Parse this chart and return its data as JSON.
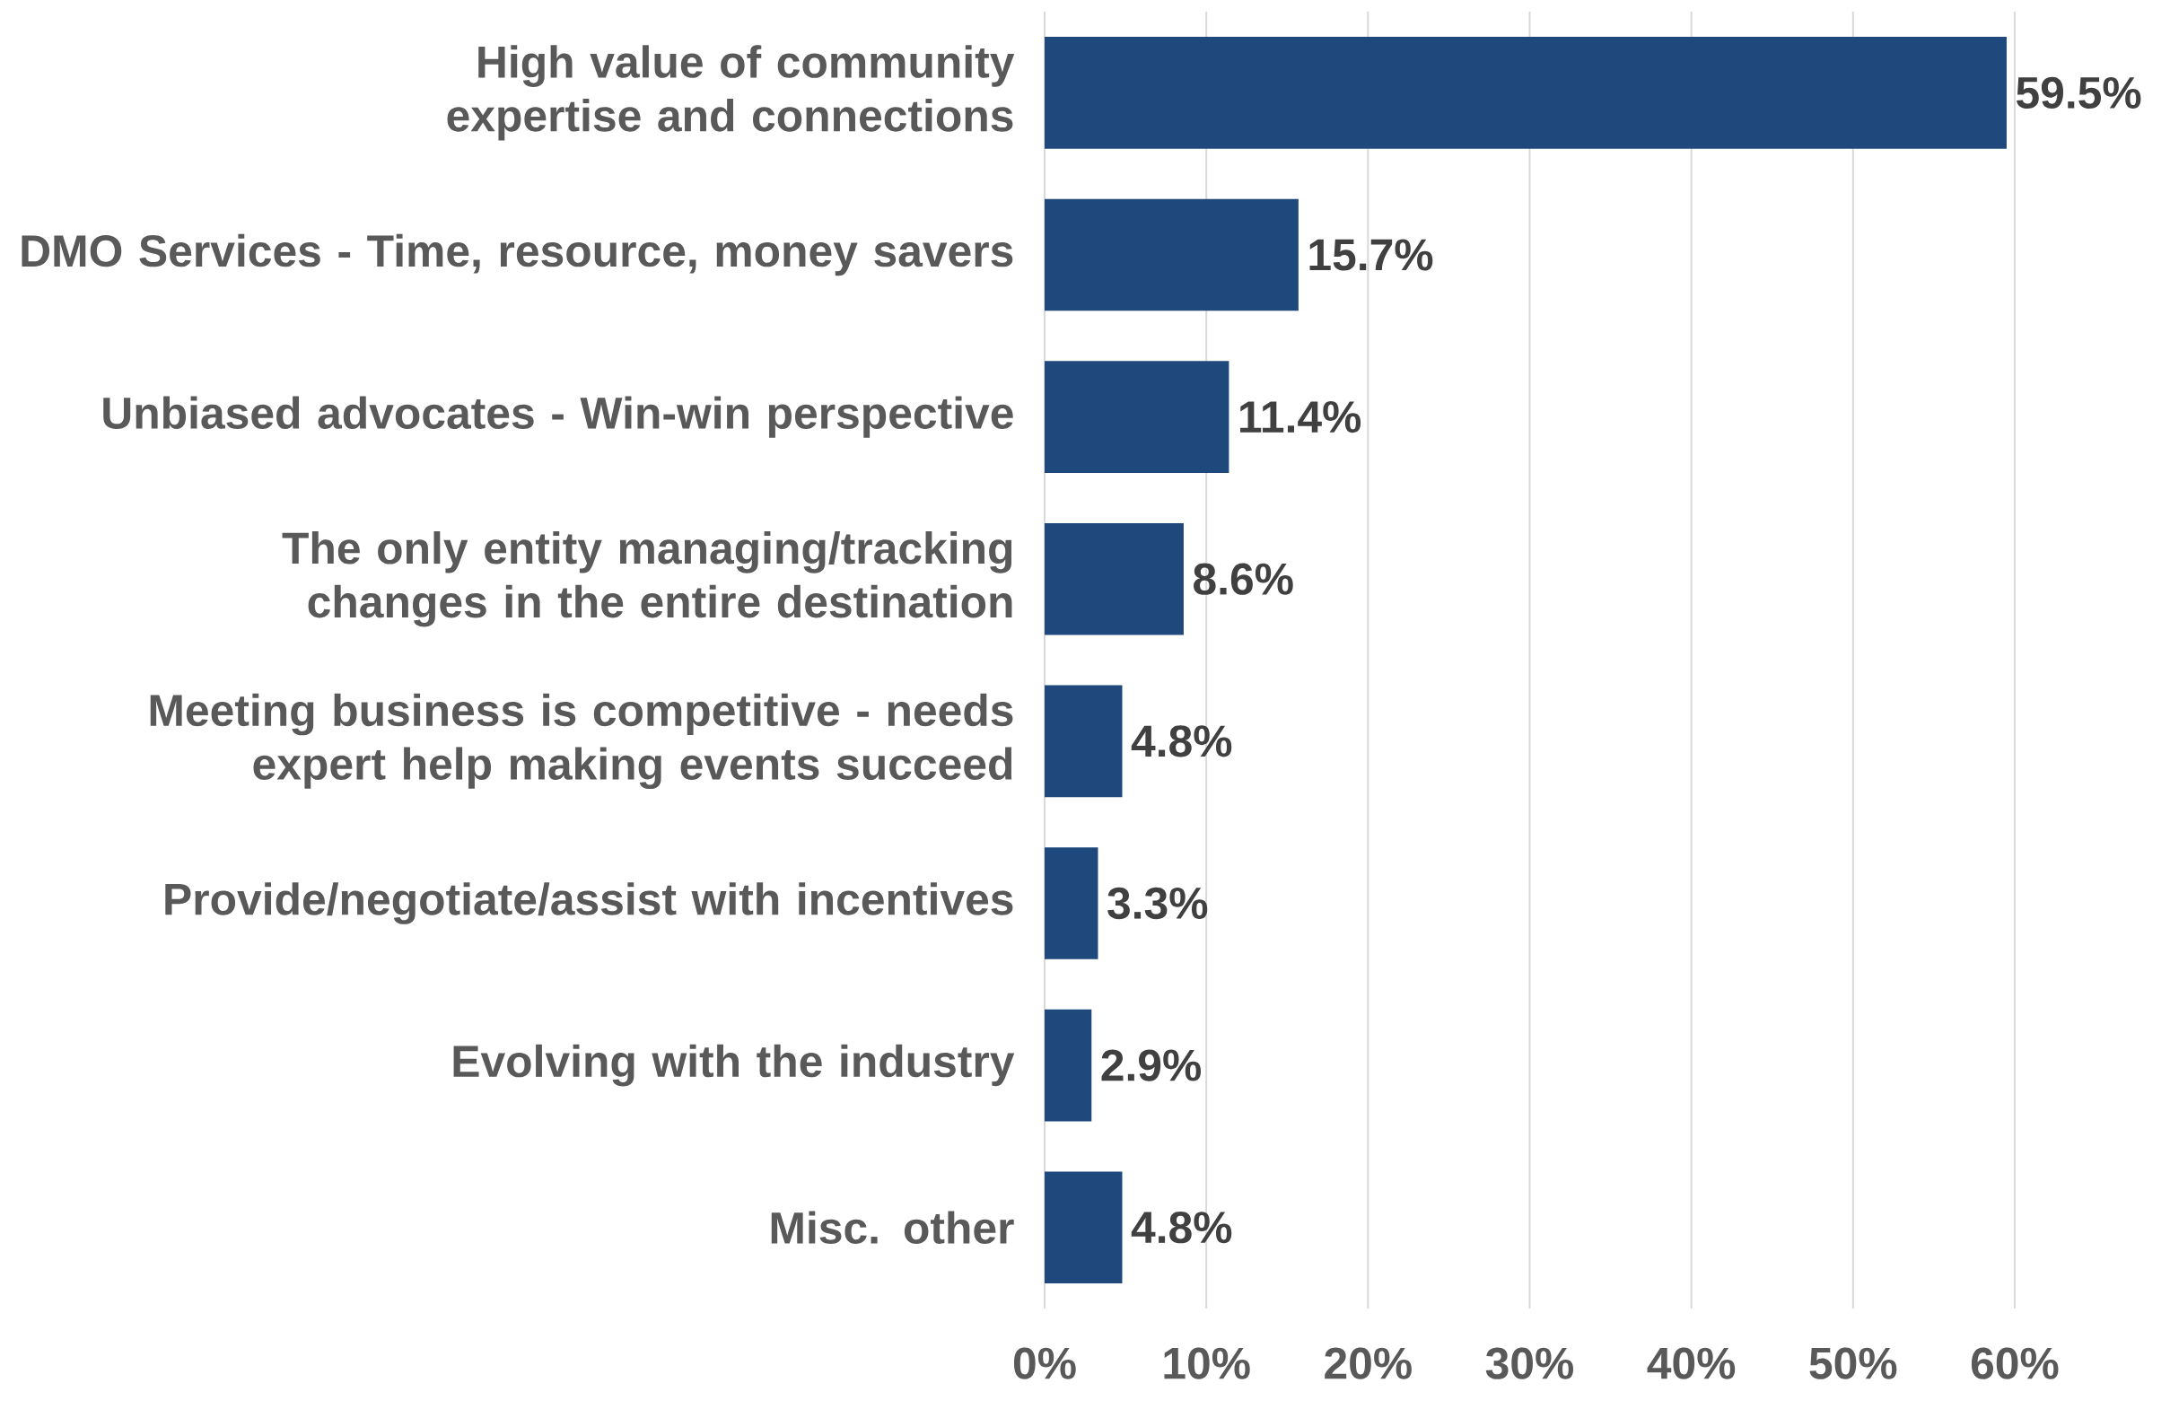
{
  "chart_data": {
    "type": "bar",
    "orientation": "horizontal",
    "categories": [
      "High value of community expertise and connections",
      "DMO Services - Time, resource, money savers",
      "Unbiased advocates - Win-win perspective",
      "The only entity managing/tracking changes in the entire destination",
      "Meeting business is competitive - needs expert help making events succeed",
      "Provide/negotiate/assist with incentives",
      "Evolving with the industry",
      "Misc. other"
    ],
    "values": [
      59.5,
      15.7,
      11.4,
      8.6,
      4.8,
      3.3,
      2.9,
      4.8
    ],
    "value_labels": [
      "59.5%",
      "15.7%",
      "11.4%",
      "8.6%",
      "4.8%",
      "3.3%",
      "2.9%",
      "4.8%"
    ],
    "color": "#1f497d",
    "xlim": [
      0,
      60
    ],
    "xticks": [
      {
        "value": 0,
        "label": "0%"
      },
      {
        "value": 10,
        "label": "10%"
      },
      {
        "value": 20,
        "label": "20%"
      },
      {
        "value": 30,
        "label": "30%"
      },
      {
        "value": 40,
        "label": "40%"
      },
      {
        "value": 50,
        "label": "50%"
      },
      {
        "value": 60,
        "label": "60%"
      }
    ],
    "grid": "x"
  }
}
